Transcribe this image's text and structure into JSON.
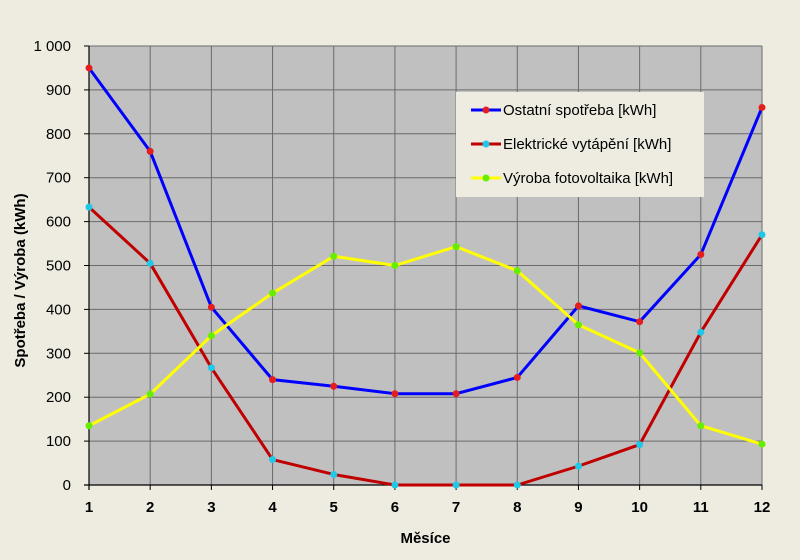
{
  "chart_data": {
    "type": "line",
    "title": "",
    "xlabel": "Měsíce",
    "ylabel": "Spotřeba / Výroba (kWh)",
    "x": [
      1,
      2,
      3,
      4,
      5,
      6,
      7,
      8,
      9,
      10,
      11,
      12
    ],
    "x_tick_labels": [
      "1",
      "2",
      "3",
      "4",
      "5",
      "6",
      "7",
      "8",
      "9",
      "10",
      "11",
      "12"
    ],
    "ylim": [
      0,
      1000
    ],
    "y_ticks": [
      0,
      100,
      200,
      300,
      400,
      500,
      600,
      700,
      800,
      900,
      1000
    ],
    "y_tick_labels": [
      "0",
      "100",
      "200",
      "300",
      "400",
      "500",
      "600",
      "700",
      "800",
      "900",
      "1 000"
    ],
    "grid": true,
    "legend_position": "top-right",
    "plot_background": "#c0c0c0",
    "page_background": "#eeece1",
    "series": [
      {
        "name": "Ostatní spotřeba [kWh]",
        "line_color": "#0000ff",
        "marker_color": "#e41e1e",
        "values": [
          950,
          760,
          405,
          240,
          225,
          208,
          208,
          245,
          408,
          372,
          525,
          860
        ]
      },
      {
        "name": "Elektrické vytápění [kWh]",
        "line_color": "#c00000",
        "marker_color": "#1ec8e6",
        "values": [
          633,
          505,
          267,
          58,
          24,
          0,
          0,
          0,
          43,
          92,
          348,
          570
        ]
      },
      {
        "name": "Výroba fotovoltaika [kWh]",
        "line_color": "#ffff00",
        "marker_color": "#66ee00",
        "values": [
          135,
          207,
          340,
          437,
          521,
          500,
          543,
          488,
          365,
          301,
          135,
          93
        ]
      }
    ]
  }
}
